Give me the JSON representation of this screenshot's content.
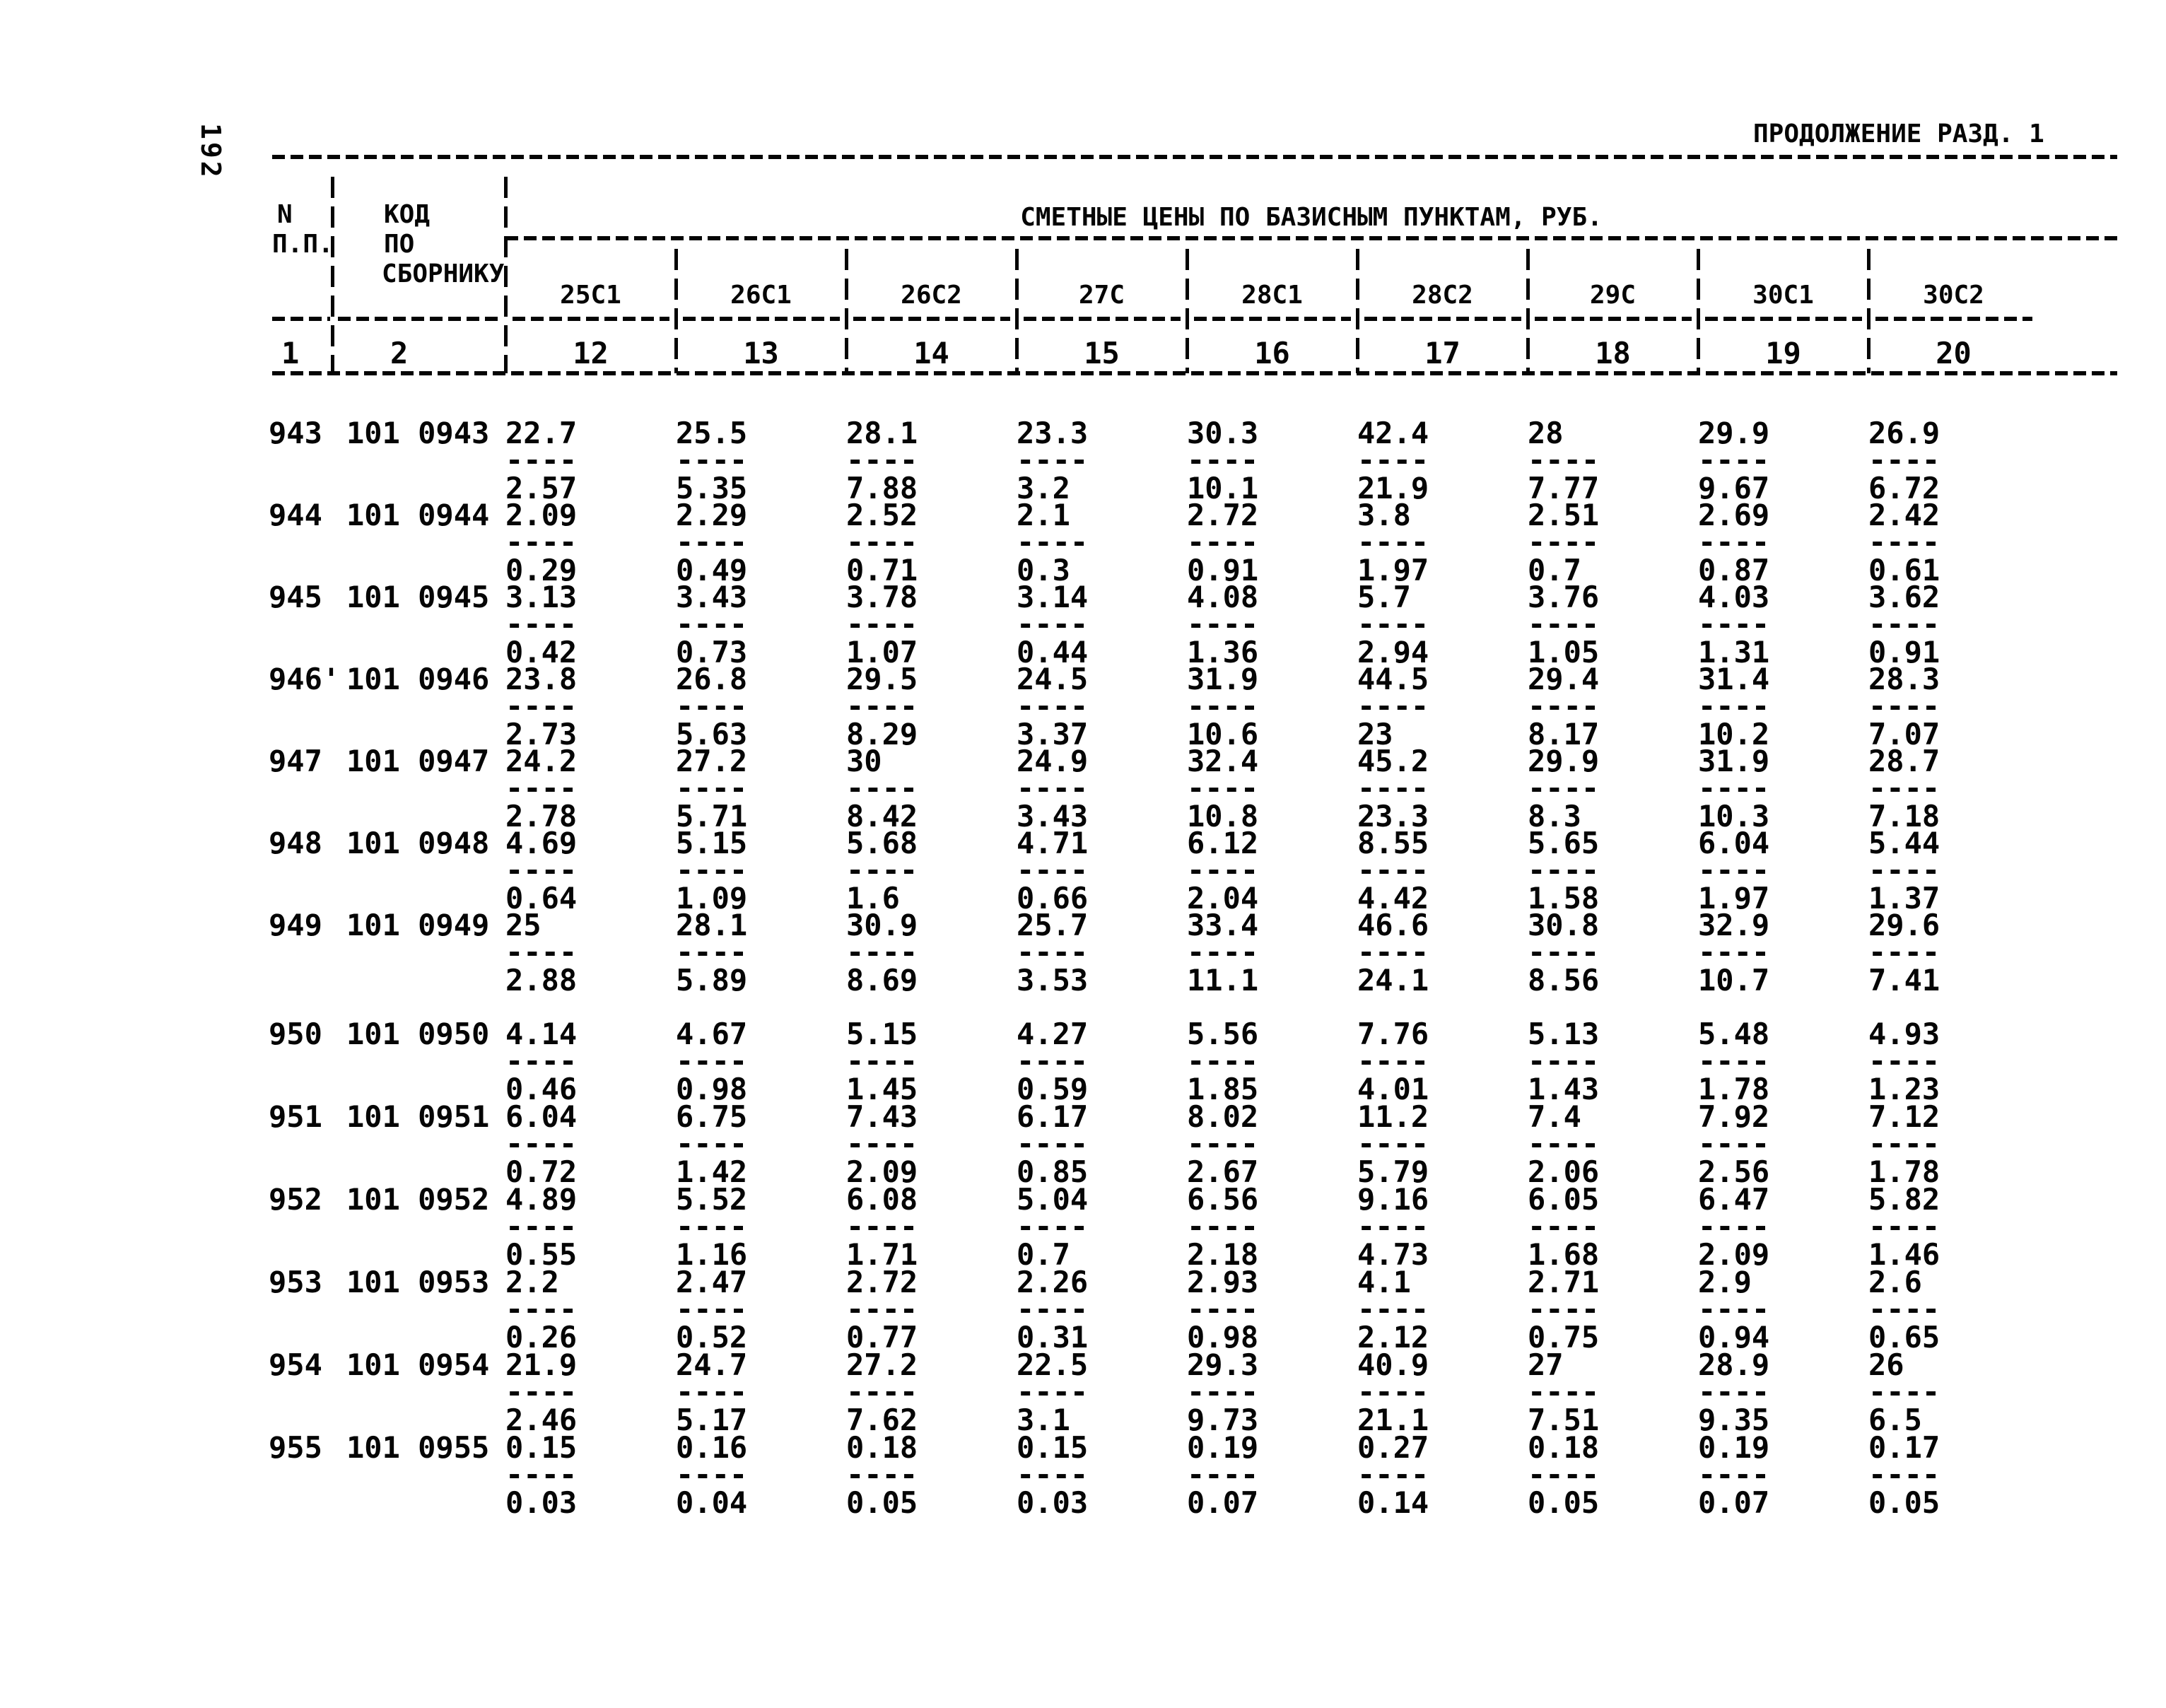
{
  "page": {
    "number": "192",
    "continuation": "ПРОДОЛЖЕНИЕ РАЗД. 1"
  },
  "table": {
    "title": "СМЕТНЫЕ ЦЕНЫ ПО БАЗИСНЫМ ПУНКТАМ, РУБ.",
    "header": {
      "col1_line1": "N",
      "col1_line2": "П.П.",
      "col2_line1": "КОД",
      "col2_line2": "ПО",
      "col2_line3": "СБОРНИКУ",
      "col1_num": "1",
      "col2_num": "2"
    },
    "separator": "----",
    "price_columns": [
      {
        "label": "25С1",
        "num": "12"
      },
      {
        "label": "26С1",
        "num": "13"
      },
      {
        "label": "26С2",
        "num": "14"
      },
      {
        "label": "27С",
        "num": "15"
      },
      {
        "label": "28С1",
        "num": "16"
      },
      {
        "label": "28С2",
        "num": "17"
      },
      {
        "label": "29С",
        "num": "18"
      },
      {
        "label": "30С1",
        "num": "19"
      },
      {
        "label": "30С2",
        "num": "20"
      }
    ],
    "rows": [
      {
        "n": "943",
        "code": "101 0943",
        "cells": [
          [
            "22.7",
            "2.57"
          ],
          [
            "25.5",
            "5.35"
          ],
          [
            "28.1",
            "7.88"
          ],
          [
            "23.3",
            "3.2"
          ],
          [
            "30.3",
            "10.1"
          ],
          [
            "42.4",
            "21.9"
          ],
          [
            "28",
            "7.77"
          ],
          [
            "29.9",
            "9.67"
          ],
          [
            "26.9",
            "6.72"
          ]
        ]
      },
      {
        "n": "944",
        "code": "101 0944",
        "cells": [
          [
            "2.09",
            "0.29"
          ],
          [
            "2.29",
            "0.49"
          ],
          [
            "2.52",
            "0.71"
          ],
          [
            "2.1",
            "0.3"
          ],
          [
            "2.72",
            "0.91"
          ],
          [
            "3.8",
            "1.97"
          ],
          [
            "2.51",
            "0.7"
          ],
          [
            "2.69",
            "0.87"
          ],
          [
            "2.42",
            "0.61"
          ]
        ]
      },
      {
        "n": "945",
        "code": "101 0945",
        "cells": [
          [
            "3.13",
            "0.42"
          ],
          [
            "3.43",
            "0.73"
          ],
          [
            "3.78",
            "1.07"
          ],
          [
            "3.14",
            "0.44"
          ],
          [
            "4.08",
            "1.36"
          ],
          [
            "5.7",
            "2.94"
          ],
          [
            "3.76",
            "1.05"
          ],
          [
            "4.03",
            "1.31"
          ],
          [
            "3.62",
            "0.91"
          ]
        ]
      },
      {
        "n": "946'",
        "code": "101 0946",
        "cells": [
          [
            "23.8",
            "2.73"
          ],
          [
            "26.8",
            "5.63"
          ],
          [
            "29.5",
            "8.29"
          ],
          [
            "24.5",
            "3.37"
          ],
          [
            "31.9",
            "10.6"
          ],
          [
            "44.5",
            "23"
          ],
          [
            "29.4",
            "8.17"
          ],
          [
            "31.4",
            "10.2"
          ],
          [
            "28.3",
            "7.07"
          ]
        ]
      },
      {
        "n": "947",
        "code": "101 0947",
        "cells": [
          [
            "24.2",
            "2.78"
          ],
          [
            "27.2",
            "5.71"
          ],
          [
            "30",
            "8.42"
          ],
          [
            "24.9",
            "3.43"
          ],
          [
            "32.4",
            "10.8"
          ],
          [
            "45.2",
            "23.3"
          ],
          [
            "29.9",
            "8.3"
          ],
          [
            "31.9",
            "10.3"
          ],
          [
            "28.7",
            "7.18"
          ]
        ]
      },
      {
        "n": "948",
        "code": "101 0948",
        "cells": [
          [
            "4.69",
            "0.64"
          ],
          [
            "5.15",
            "1.09"
          ],
          [
            "5.68",
            "1.6"
          ],
          [
            "4.71",
            "0.66"
          ],
          [
            "6.12",
            "2.04"
          ],
          [
            "8.55",
            "4.42"
          ],
          [
            "5.65",
            "1.58"
          ],
          [
            "6.04",
            "1.97"
          ],
          [
            "5.44",
            "1.37"
          ]
        ]
      },
      {
        "n": "949",
        "code": "101 0949",
        "cells": [
          [
            "25",
            "2.88"
          ],
          [
            "28.1",
            "5.89"
          ],
          [
            "30.9",
            "8.69"
          ],
          [
            "25.7",
            "3.53"
          ],
          [
            "33.4",
            "11.1"
          ],
          [
            "46.6",
            "24.1"
          ],
          [
            "30.8",
            "8.56"
          ],
          [
            "32.9",
            "10.7"
          ],
          [
            "29.6",
            "7.41"
          ]
        ]
      },
      {
        "n": "950",
        "code": "101 0950",
        "cells": [
          [
            "4.14",
            "0.46"
          ],
          [
            "4.67",
            "0.98"
          ],
          [
            "5.15",
            "1.45"
          ],
          [
            "4.27",
            "0.59"
          ],
          [
            "5.56",
            "1.85"
          ],
          [
            "7.76",
            "4.01"
          ],
          [
            "5.13",
            "1.43"
          ],
          [
            "5.48",
            "1.78"
          ],
          [
            "4.93",
            "1.23"
          ]
        ]
      },
      {
        "n": "951",
        "code": "101 0951",
        "cells": [
          [
            "6.04",
            "0.72"
          ],
          [
            "6.75",
            "1.42"
          ],
          [
            "7.43",
            "2.09"
          ],
          [
            "6.17",
            "0.85"
          ],
          [
            "8.02",
            "2.67"
          ],
          [
            "11.2",
            "5.79"
          ],
          [
            "7.4",
            "2.06"
          ],
          [
            "7.92",
            "2.56"
          ],
          [
            "7.12",
            "1.78"
          ]
        ]
      },
      {
        "n": "952",
        "code": "101 0952",
        "cells": [
          [
            "4.89",
            "0.55"
          ],
          [
            "5.52",
            "1.16"
          ],
          [
            "6.08",
            "1.71"
          ],
          [
            "5.04",
            "0.7"
          ],
          [
            "6.56",
            "2.18"
          ],
          [
            "9.16",
            "4.73"
          ],
          [
            "6.05",
            "1.68"
          ],
          [
            "6.47",
            "2.09"
          ],
          [
            "5.82",
            "1.46"
          ]
        ]
      },
      {
        "n": "953",
        "code": "101 0953",
        "cells": [
          [
            "2.2",
            "0.26"
          ],
          [
            "2.47",
            "0.52"
          ],
          [
            "2.72",
            "0.77"
          ],
          [
            "2.26",
            "0.31"
          ],
          [
            "2.93",
            "0.98"
          ],
          [
            "4.1",
            "2.12"
          ],
          [
            "2.71",
            "0.75"
          ],
          [
            "2.9",
            "0.94"
          ],
          [
            "2.6",
            "0.65"
          ]
        ]
      },
      {
        "n": "954",
        "code": "101 0954",
        "cells": [
          [
            "21.9",
            "2.46"
          ],
          [
            "24.7",
            "5.17"
          ],
          [
            "27.2",
            "7.62"
          ],
          [
            "22.5",
            "3.1"
          ],
          [
            "29.3",
            "9.73"
          ],
          [
            "40.9",
            "21.1"
          ],
          [
            "27",
            "7.51"
          ],
          [
            "28.9",
            "9.35"
          ],
          [
            "26",
            "6.5"
          ]
        ]
      },
      {
        "n": "955",
        "code": "101 0955",
        "cells": [
          [
            "0.15",
            "0.03"
          ],
          [
            "0.16",
            "0.04"
          ],
          [
            "0.18",
            "0.05"
          ],
          [
            "0.15",
            "0.03"
          ],
          [
            "0.19",
            "0.07"
          ],
          [
            "0.27",
            "0.14"
          ],
          [
            "0.18",
            "0.05"
          ],
          [
            "0.19",
            "0.07"
          ],
          [
            "0.17",
            "0.05"
          ]
        ]
      }
    ]
  }
}
